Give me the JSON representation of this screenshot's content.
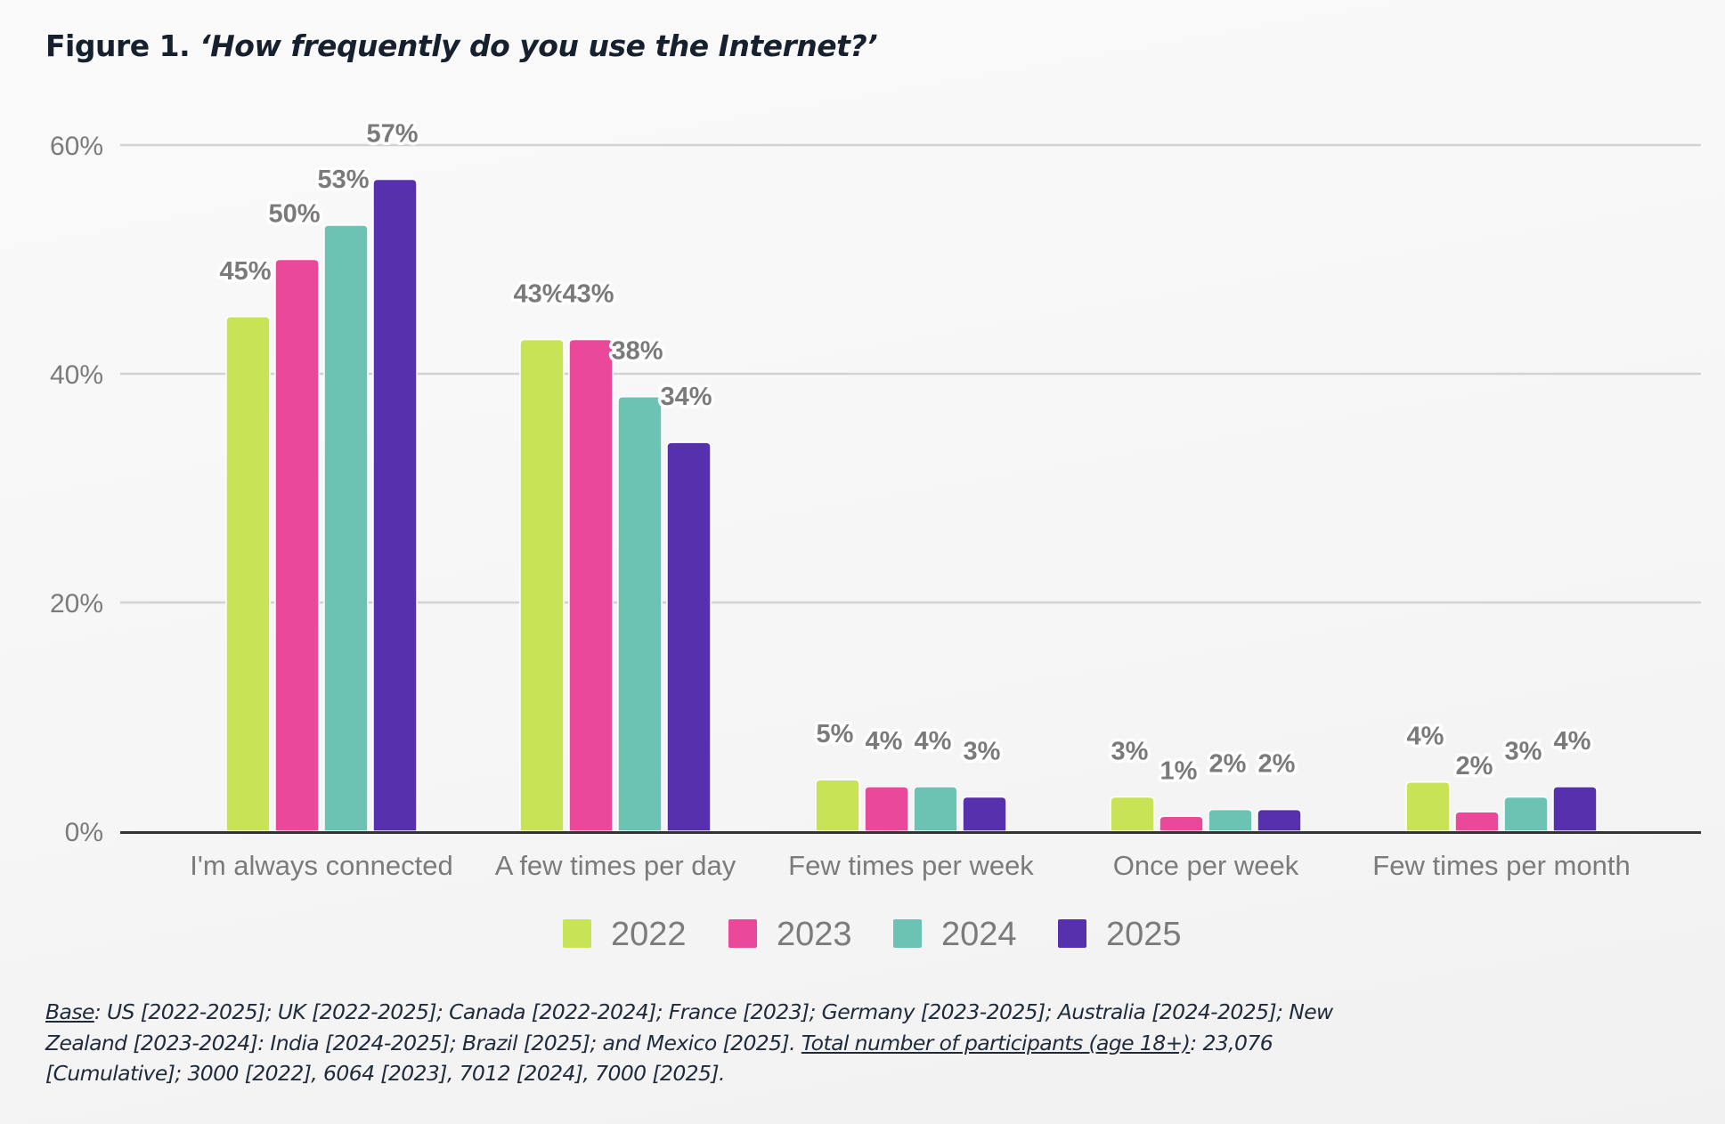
{
  "figure": {
    "label": "Figure 1.",
    "question": "‘How frequently do you use the Internet?’"
  },
  "colors": {
    "2022": "#c9e356",
    "2023": "#ea4899",
    "2024": "#6cc3b3",
    "2025": "#5630ad",
    "grid": "#d2d2d2",
    "baseline": "#333333"
  },
  "chart_data": {
    "type": "bar",
    "title": "Figure 1. ‘How frequently do you use the Internet?’",
    "xlabel": "",
    "ylabel": "",
    "ylim": [
      0,
      60
    ],
    "yticks": [
      0,
      20,
      40,
      60
    ],
    "ytick_labels": [
      "0%",
      "20%",
      "40%",
      "60%"
    ],
    "grid": true,
    "legend_position": "bottom-center",
    "categories": [
      "I'm always connected",
      "A few times per day",
      "Few times per week",
      "Once per week",
      "Few times per month"
    ],
    "series": [
      {
        "name": "2022",
        "values": [
          45,
          43,
          4.5,
          3.0,
          4.3
        ],
        "labels": [
          "45%",
          "43%",
          "5%",
          "3%",
          "4%"
        ]
      },
      {
        "name": "2023",
        "values": [
          50,
          43,
          3.9,
          1.3,
          1.7
        ],
        "labels": [
          "50%",
          "43%",
          "4%",
          "1%",
          "2%"
        ]
      },
      {
        "name": "2024",
        "values": [
          53,
          38,
          3.9,
          1.9,
          3.0
        ],
        "labels": [
          "53%",
          "38%",
          "4%",
          "2%",
          "3%"
        ]
      },
      {
        "name": "2025",
        "values": [
          57,
          34,
          3.0,
          1.9,
          3.9
        ],
        "labels": [
          "57%",
          "34%",
          "3%",
          "2%",
          "4%"
        ]
      }
    ]
  },
  "footnote": {
    "base_label": "Base",
    "base_text": ": US [2022-2025]; UK [2022-2025]; Canada [2022-2024]; France [2023]; Germany [2023-2025]; Australia [2024-2025]; New Zealand [2023-2024]: India [2024-2025]; Brazil [2025]; and Mexico [2025]. ",
    "total_label": "Total number of participants (age 18+)",
    "total_text": ": 23,076 [Cumulative]; 3000 [2022], 6064 [2023], 7012 [2024], 7000 [2025]."
  }
}
